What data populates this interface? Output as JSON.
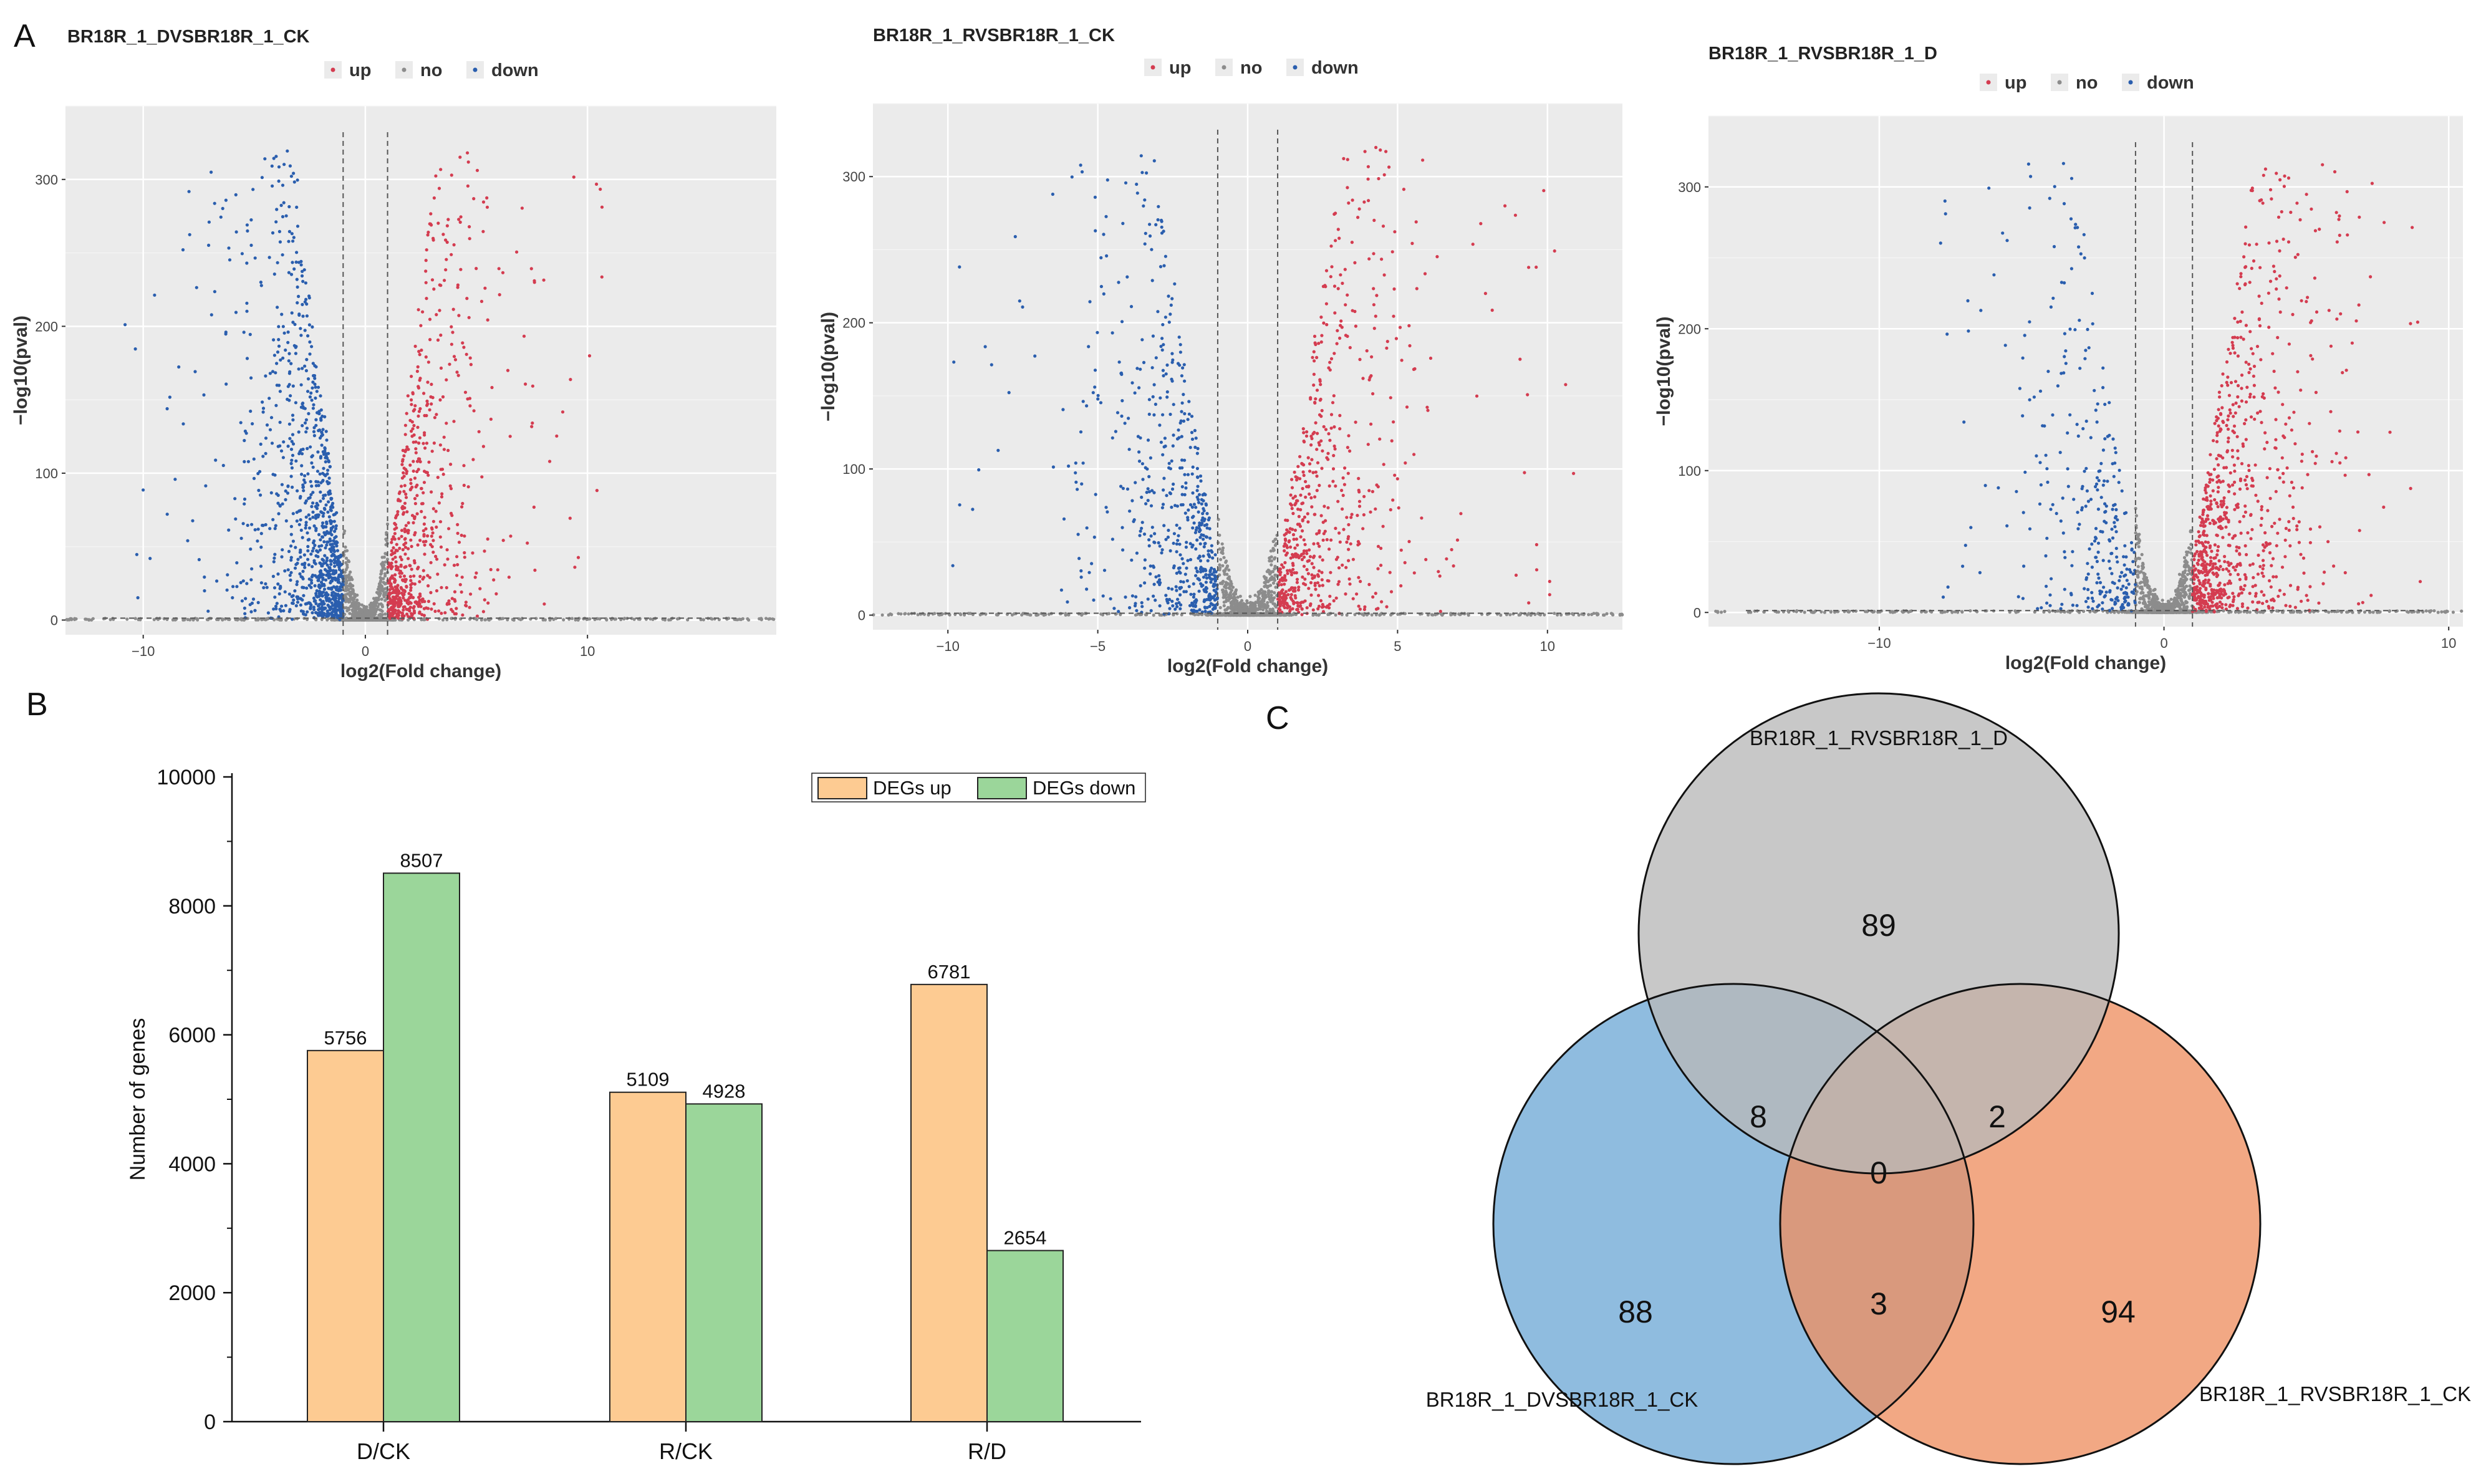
{
  "panels": {
    "a_label": "A",
    "b_label": "B",
    "c_label": "C"
  },
  "colors": {
    "up": "#d43c50",
    "no": "#8c8c8c",
    "down": "#2a5eae",
    "volcano_bg": "#ebebeb",
    "degs_up": "#fdcb92",
    "degs_down": "#9bd69a",
    "venn_top": "#b9b9b9",
    "venn_left": "#6fa9d6",
    "venn_right": "#ee8f62"
  },
  "chart_data": [
    {
      "type": "scatter",
      "id": "volcano1",
      "title": "BR18R_1_DVSBR18R_1_CK",
      "xlabel": "log2(Fold change)",
      "ylabel": "−log10(pval)",
      "xlim": [
        -13.5,
        18.5
      ],
      "ylim": [
        -10,
        350
      ],
      "xticks": [
        {
          "v": -10,
          "label": "−10"
        },
        {
          "v": 0,
          "label": "0"
        },
        {
          "v": 10,
          "label": "10"
        }
      ],
      "yticks": [
        {
          "v": 0,
          "label": "0"
        },
        {
          "v": 100,
          "label": "100"
        },
        {
          "v": 200,
          "label": "200"
        },
        {
          "v": 300,
          "label": "300"
        }
      ],
      "legend": [
        "up",
        "no",
        "down"
      ],
      "thresholds": {
        "fc": 1,
        "pval": 1.3
      },
      "counts": {
        "up": 5756,
        "down": 8507
      },
      "ymax_points": 320,
      "spread": {
        "down_range": [
          -11,
          -1
        ],
        "up_range": [
          1,
          11
        ]
      },
      "grid": true
    },
    {
      "type": "scatter",
      "id": "volcano2",
      "title": "BR18R_1_RVSBR18R_1_CK",
      "xlabel": "log2(Fold change)",
      "ylabel": "−log10(pval)",
      "xlim": [
        -12.5,
        12.5
      ],
      "ylim": [
        -10,
        350
      ],
      "xticks": [
        {
          "v": -10,
          "label": "−10"
        },
        {
          "v": -5,
          "label": "−5"
        },
        {
          "v": 0,
          "label": "0"
        },
        {
          "v": 5,
          "label": "5"
        },
        {
          "v": 10,
          "label": "10"
        }
      ],
      "yticks": [
        {
          "v": 0,
          "label": "0"
        },
        {
          "v": 100,
          "label": "100"
        },
        {
          "v": 200,
          "label": "200"
        },
        {
          "v": 300,
          "label": "300"
        }
      ],
      "legend": [
        "up",
        "no",
        "down"
      ],
      "thresholds": {
        "fc": 1,
        "pval": 1.3
      },
      "counts": {
        "up": 5109,
        "down": 4928
      },
      "ymax_points": 320,
      "spread": {
        "down_range": [
          -10,
          -1
        ],
        "up_range": [
          1,
          11
        ]
      },
      "grid": true
    },
    {
      "type": "scatter",
      "id": "volcano3",
      "title": "BR18R_1_RVSBR18R_1_D",
      "xlabel": "log2(Fold change)",
      "ylabel": "−log10(pval)",
      "xlim": [
        -16,
        10.5
      ],
      "ylim": [
        -10,
        350
      ],
      "xticks": [
        {
          "v": -10,
          "label": "−10"
        },
        {
          "v": 0,
          "label": "0"
        },
        {
          "v": 10,
          "label": "10"
        }
      ],
      "yticks": [
        {
          "v": 0,
          "label": "0"
        },
        {
          "v": 100,
          "label": "100"
        },
        {
          "v": 200,
          "label": "200"
        },
        {
          "v": 300,
          "label": "300"
        }
      ],
      "legend": [
        "up",
        "no",
        "down"
      ],
      "thresholds": {
        "fc": 1,
        "pval": 1.3
      },
      "counts": {
        "up": 6781,
        "down": 2654
      },
      "ymax_points": 320,
      "spread": {
        "down_range": [
          -8,
          -1
        ],
        "up_range": [
          1,
          9
        ]
      },
      "grid": true
    },
    {
      "type": "bar",
      "id": "degs_bar",
      "categories": [
        "D/CK",
        "R/CK",
        "R/D"
      ],
      "series": [
        {
          "name": "DEGs up",
          "values": [
            5756,
            5109,
            6781
          ]
        },
        {
          "name": "DEGs down",
          "values": [
            8507,
            4928,
            2654
          ]
        }
      ],
      "ylabel": "Number of genes",
      "xlabel": "",
      "ylim": [
        0,
        10000
      ],
      "yticks": [
        0,
        2000,
        4000,
        6000,
        8000,
        10000
      ],
      "legend": "top-right"
    },
    {
      "type": "venn",
      "id": "venn",
      "sets": [
        "BR18R_1_RVSBR18R_1_D",
        "BR18R_1_DVSBR18R_1_CK",
        "BR18R_1_RVSBR18R_1_CK"
      ],
      "regions": {
        "top_only": 89,
        "left_only": 88,
        "right_only": 94,
        "top_left": 8,
        "top_right": 2,
        "left_right": 3,
        "all": 0
      }
    }
  ]
}
